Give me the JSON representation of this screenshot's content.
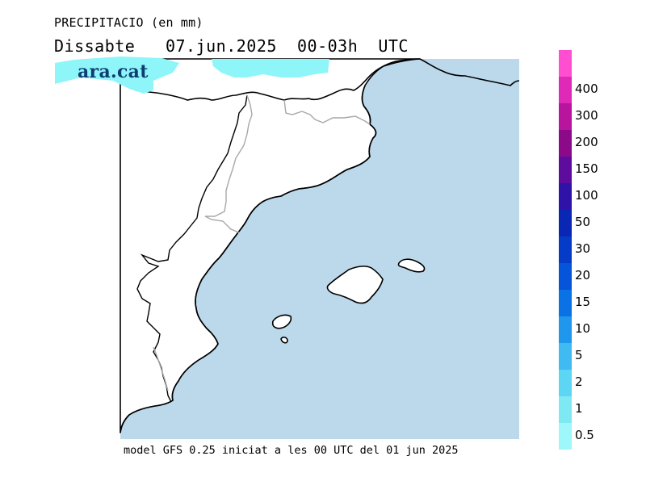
{
  "header": {
    "product": "PRECIPITACIO (en mm)",
    "date_line": "Dissabte   07.jun.2025  00-03h  UTC"
  },
  "brand": {
    "logo_text": "ara.cat"
  },
  "footer": {
    "model_note": "model GFS 0.25 iniciat a les 00 UTC del 01 jun 2025"
  },
  "map": {
    "region": "Catalonia / NE Iberian Peninsula and Balearic Islands",
    "sea_color": "#bcd9ec",
    "land_color": "#ffffff",
    "coast_color": "#000000",
    "border_color": "#a8a8a8",
    "precip_color_shown": "#8ef5f8"
  },
  "legend": {
    "entries": [
      {
        "label": "0.5",
        "color": "#9ef7fa"
      },
      {
        "label": "1",
        "color": "#7fe9f3"
      },
      {
        "label": "2",
        "color": "#5cd6f2"
      },
      {
        "label": "5",
        "color": "#3fbbf1"
      },
      {
        "label": "10",
        "color": "#1f97ec"
      },
      {
        "label": "15",
        "color": "#0a72e4"
      },
      {
        "label": "20",
        "color": "#0654da"
      },
      {
        "label": "30",
        "color": "#063bc8"
      },
      {
        "label": "50",
        "color": "#0a26b4"
      },
      {
        "label": "100",
        "color": "#2f12a8"
      },
      {
        "label": "150",
        "color": "#5d0c9e"
      },
      {
        "label": "200",
        "color": "#8c0a8a"
      },
      {
        "label": "300",
        "color": "#b8149e"
      },
      {
        "label": "400",
        "color": "#de2ab6"
      },
      {
        "label": "",
        "color": "#ff4fd0"
      }
    ]
  }
}
